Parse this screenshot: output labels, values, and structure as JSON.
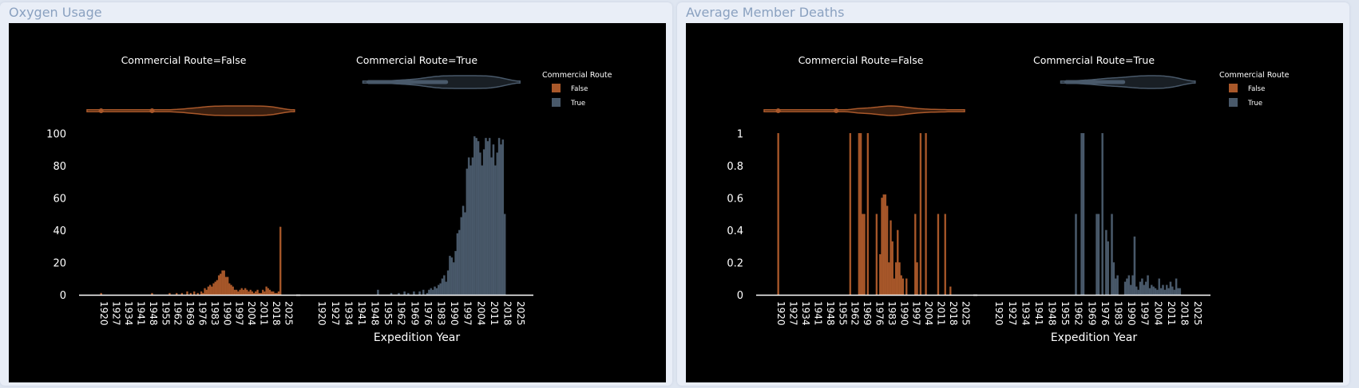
{
  "panels": [
    {
      "title": "Oxygen Usage",
      "chart_data": {
        "type": "bar",
        "facet_titles": [
          "Commercial Route=False",
          "Commercial Route=True"
        ],
        "xlabel": "Expedition Year",
        "ylabel": "",
        "x_ticks": [
          "1920",
          "1927",
          "1934",
          "1941",
          "1948",
          "1955",
          "1962",
          "1969",
          "1976",
          "1983",
          "1990",
          "1997",
          "2004",
          "2011",
          "2018",
          "2025"
        ],
        "y_ticks": [
          "0",
          "20",
          "40",
          "60",
          "80",
          "100"
        ],
        "ylim": [
          0,
          110
        ],
        "xlim": [
          1914,
          2033
        ],
        "legend": {
          "title": "Commercial Route",
          "items": [
            "False",
            "True"
          ],
          "position": "top-right"
        },
        "marginal": "violin",
        "series": [
          {
            "name": "False",
            "color": "#a9582a",
            "x": [
              1922,
              1951,
              1961,
              1965,
              1968,
              1971,
              1973,
              1975,
              1977,
              1979,
              1980,
              1981,
              1982,
              1983,
              1984,
              1985,
              1986,
              1987,
              1988,
              1989,
              1990,
              1991,
              1992,
              1993,
              1994,
              1995,
              1996,
              1997,
              1998,
              1999,
              2000,
              2001,
              2002,
              2003,
              2004,
              2005,
              2006,
              2007,
              2008,
              2009,
              2010,
              2011,
              2012,
              2013,
              2014,
              2015,
              2016,
              2017,
              2018,
              2019,
              2020,
              2021,
              2022,
              2023,
              2024
            ],
            "values": [
              1,
              1,
              1,
              1,
              1,
              2,
              1,
              2,
              1,
              2,
              1,
              4,
              3,
              5,
              6,
              5,
              7,
              8,
              9,
              12,
              13,
              15,
              15,
              11,
              11,
              7,
              6,
              5,
              3,
              3,
              2,
              3,
              4,
              3,
              4,
              3,
              2,
              3,
              2,
              1,
              2,
              3,
              1,
              1,
              3,
              2,
              5,
              4,
              3,
              2,
              2,
              1,
              1,
              2,
              42
            ]
          },
          {
            "name": "True",
            "color": "#49596a",
            "x": [
              1953,
              1960,
              1964,
              1967,
              1969,
              1972,
              1975,
              1977,
              1979,
              1980,
              1981,
              1982,
              1983,
              1984,
              1985,
              1986,
              1987,
              1988,
              1989,
              1990,
              1991,
              1992,
              1993,
              1994,
              1995,
              1996,
              1997,
              1998,
              1999,
              2000,
              2001,
              2002,
              2003,
              2004,
              2005,
              2006,
              2007,
              2008,
              2009,
              2010,
              2011,
              2012,
              2013,
              2014,
              2015,
              2016,
              2017,
              2018,
              2019,
              2020
            ],
            "values": [
              3,
              1,
              1,
              2,
              1,
              2,
              2,
              3,
              1,
              3,
              4,
              3,
              5,
              4,
              6,
              7,
              10,
              12,
              8,
              15,
              24,
              23,
              20,
              27,
              38,
              40,
              48,
              55,
              51,
              78,
              85,
              80,
              85,
              98,
              97,
              95,
              88,
              80,
              90,
              97,
              95,
              97,
              85,
              93,
              80,
              88,
              97,
              93,
              96,
              50
            ]
          }
        ],
        "violin_points_false": [
          1922,
          1951
        ]
      }
    },
    {
      "title": "Average Member Deaths",
      "chart_data": {
        "type": "bar",
        "facet_titles": [
          "Commercial Route=False",
          "Commercial Route=True"
        ],
        "xlabel": "Expedition Year",
        "ylabel": "",
        "x_ticks": [
          "1920",
          "1927",
          "1934",
          "1941",
          "1948",
          "1955",
          "1962",
          "1969",
          "1976",
          "1983",
          "1990",
          "1997",
          "2004",
          "2011",
          "2018",
          "2025"
        ],
        "y_ticks": [
          "0",
          "0.2",
          "0.4",
          "0.6",
          "0.8",
          "1"
        ],
        "ylim": [
          0,
          1.1
        ],
        "xlim": [
          1914,
          2033
        ],
        "legend": {
          "title": "Commercial Route",
          "items": [
            "False",
            "True"
          ],
          "position": "top-right"
        },
        "marginal": "violin",
        "series": [
          {
            "name": "False",
            "color": "#a9582a",
            "x": [
              1922,
              1963,
              1968,
              1969,
              1970,
              1971,
              1973,
              1978,
              1980,
              1981,
              1982,
              1983,
              1984,
              1985,
              1986,
              1987,
              1988,
              1989,
              1990,
              1991,
              1992,
              1993,
              1995,
              2000,
              2001,
              2003,
              2006,
              2013,
              2017,
              2020
            ],
            "values": [
              1,
              1,
              1,
              1,
              0.5,
              0.5,
              1,
              0.5,
              0.25,
              0.6,
              0.62,
              0.62,
              0.55,
              0.2,
              0.46,
              0.33,
              0.1,
              0.2,
              0.4,
              0.2,
              0.12,
              0.1,
              0.1,
              0.5,
              0.2,
              1,
              1,
              0.5,
              0.5,
              0.05
            ]
          },
          {
            "name": "True",
            "color": "#49596a",
            "x": [
              1964,
              1967,
              1968,
              1975,
              1976,
              1978,
              1980,
              1981,
              1983,
              1984,
              1985,
              1986,
              1990,
              1991,
              1992,
              1993,
              1994,
              1995,
              1996,
              1997,
              1998,
              1999,
              2000,
              2001,
              2002,
              2003,
              2004,
              2005,
              2006,
              2007,
              2008,
              2009,
              2010,
              2011,
              2012,
              2013,
              2014,
              2015,
              2016,
              2017,
              2018,
              2019
            ],
            "values": [
              0.5,
              1,
              1,
              0.5,
              0.5,
              1,
              0.4,
              0.33,
              0.5,
              0.2,
              0.1,
              0.12,
              0.08,
              0.1,
              0.12,
              0.06,
              0.12,
              0.36,
              0.05,
              0.03,
              0.08,
              0.1,
              0.06,
              0.08,
              0.12,
              0.04,
              0.06,
              0.05,
              0.04,
              0.03,
              0.1,
              0.04,
              0.06,
              0.03,
              0.06,
              0.04,
              0.08,
              0.05,
              0.03,
              0.1,
              0.04,
              0.04
            ]
          }
        ],
        "violin_points_false": [
          1922,
          1955
        ]
      }
    }
  ]
}
